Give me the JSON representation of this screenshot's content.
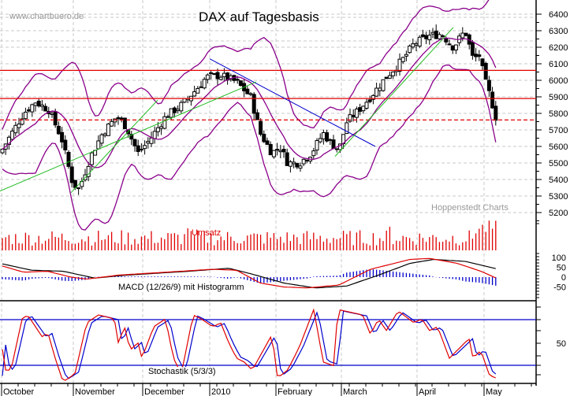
{
  "header": {
    "title": "DAX auf Tagesbasis",
    "watermark": "www.chartbuero.de",
    "source": "Hoppenstedt Charts"
  },
  "panels": {
    "volume_label": "Umsatz",
    "macd_label": "MACD (12/26/9) mit Histogramm",
    "stoch_label": "Stochastik (5/3/3)"
  },
  "colors": {
    "candle": "#000000",
    "bollinger": "#8b008b",
    "resistance": "#e00000",
    "downtrend": "#0000cc",
    "uptrend": "#22bb22",
    "volume": "#e00000",
    "macd_line": "#e00000",
    "signal_line": "#000000",
    "histogram": "#0000cc",
    "stoch_k": "#e00000",
    "stoch_d": "#0000cc",
    "grid": "#c8c8c8"
  },
  "chart_data": [
    {
      "type": "candlestick",
      "title": "DAX auf Tagesbasis",
      "xlabel": "",
      "ylabel": "",
      "x_tick_labels": [
        "October",
        "November",
        "December",
        "2010",
        "February",
        "March",
        "April",
        "May"
      ],
      "y_tick_labels": [
        "6400",
        "6300",
        "6200",
        "6100",
        "6000",
        "5900",
        "5800",
        "5700",
        "5600",
        "5500",
        "5400",
        "5300",
        "5200"
      ],
      "ylim": [
        5150,
        6450
      ],
      "grid": true,
      "approx_close_by_month_start": {
        "October": 5650,
        "November": 5450,
        "December": 5750,
        "2010": 6000,
        "February": 5550,
        "March": 5650,
        "April": 6180,
        "May": 6150,
        "last": 5750
      },
      "annotations": {
        "horizontal_lines": [
          {
            "value": 6060,
            "style": "solid",
            "color": "red"
          },
          {
            "value": 5890,
            "style": "solid",
            "color": "red"
          },
          {
            "value": 5760,
            "style": "dashed",
            "color": "red"
          }
        ],
        "trendlines": [
          {
            "name": "downtrend",
            "color": "blue",
            "from": [
              5.0,
              6130
            ],
            "to": [
              5.4,
              5610
            ]
          },
          {
            "name": "uptrend 1",
            "color": "green",
            "from": [
              0,
              5330
            ],
            "to": [
              2.95,
              5990
            ]
          },
          {
            "name": "uptrend 2",
            "color": "green",
            "from": [
              0.9,
              5320
            ],
            "to": [
              1.8,
              5880
            ]
          },
          {
            "name": "uptrend 3",
            "color": "green",
            "from": [
              4.9,
              5540
            ],
            "to": [
              5.75,
              6300
            ]
          }
        ],
        "overlay": "Bollinger Bands"
      }
    },
    {
      "type": "bar",
      "title": "Umsatz",
      "series": [
        {
          "name": "Volume",
          "values": "relative only; spikes mid-December and May"
        }
      ]
    },
    {
      "type": "line",
      "title": "MACD (12/26/9) mit Histogramm",
      "y_tick_labels": [
        "100",
        "50",
        "0",
        "-50"
      ],
      "ylim": [
        -75,
        125
      ],
      "series": [
        {
          "name": "MACD",
          "color": "red"
        },
        {
          "name": "Signal",
          "color": "black"
        },
        {
          "name": "Histogram",
          "color": "blue"
        }
      ]
    },
    {
      "type": "line",
      "title": "Stochastik (5/3/3)",
      "y_tick_labels": [
        "50"
      ],
      "ylim": [
        0,
        100
      ],
      "reference_lines": [
        80,
        20
      ],
      "series": [
        {
          "name": "%K",
          "color": "red"
        },
        {
          "name": "%D",
          "color": "blue"
        }
      ]
    }
  ]
}
